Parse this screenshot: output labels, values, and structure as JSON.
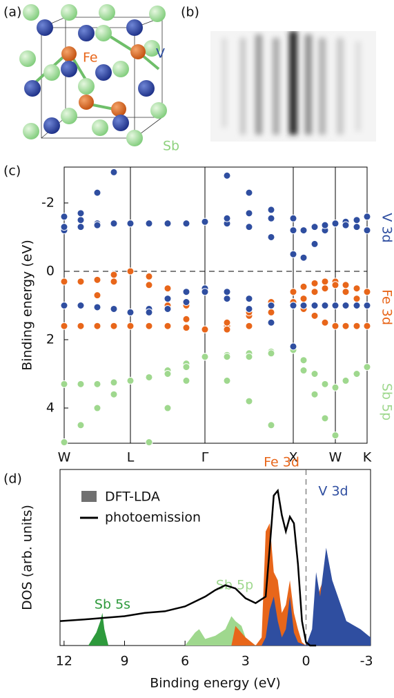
{
  "panel_labels": [
    "(a)",
    "(b)",
    "(c)",
    "(d)"
  ],
  "structure": {
    "labels": [
      "Fe",
      "V",
      "Sb"
    ]
  },
  "chart_data": [
    {
      "type": "bands",
      "ylabel": "Binding energy (eV)",
      "xlim": [
        0,
        4.39
      ],
      "ylim": [
        5.03,
        -3.05
      ],
      "xticks": [
        {
          "value": 0,
          "label": "W"
        },
        {
          "value": 0.96,
          "label": "L"
        },
        {
          "value": 2.04,
          "label": "Γ"
        },
        {
          "value": 3.32,
          "label": "X"
        },
        {
          "value": 3.93,
          "label": "W"
        },
        {
          "value": 4.39,
          "label": "K"
        }
      ],
      "yticks": [
        -2,
        0,
        2,
        4
      ],
      "annotations": [
        {
          "text": "V 3d",
          "color": "#2f4ea0"
        },
        {
          "text": "Fe 3d",
          "color": "#e8661a"
        },
        {
          "text": "Sb 5p",
          "color": "#9fd88e"
        }
      ],
      "x": [
        0,
        0.24,
        0.48,
        0.72,
        0.96,
        1.23,
        1.5,
        1.77,
        2.04,
        2.36,
        2.68,
        3.0,
        3.32,
        3.47,
        3.63,
        3.78,
        3.93,
        4.08,
        4.24,
        4.39
      ],
      "series": [
        {
          "color": "#9fd88e",
          "values": [
            3.3,
            3.3,
            3.3,
            3.25,
            3.2,
            3.1,
            2.9,
            2.7,
            2.5,
            2.45,
            2.4,
            2.35,
            2.3,
            2.6,
            3.0,
            3.3,
            3.4,
            3.2,
            3.0,
            2.8
          ]
        },
        {
          "color": "#9fd88e",
          "values": [
            5.0,
            4.5,
            4.0,
            3.6,
            3.2,
            3.1,
            3.0,
            2.8,
            2.5,
            3.2,
            3.8,
            4.5,
            null,
            null,
            null,
            null,
            null,
            null,
            null,
            null
          ]
        },
        {
          "color": "#9fd88e",
          "values": [
            null,
            null,
            null,
            null,
            null,
            5.0,
            4.0,
            3.2,
            2.5,
            2.5,
            2.5,
            2.4,
            2.3,
            2.9,
            3.6,
            4.3,
            4.8,
            null,
            null,
            null
          ]
        },
        {
          "color": "#e8661a",
          "values": [
            0.3,
            0.3,
            0.25,
            0.1,
            0.0,
            0.15,
            0.5,
            1.0,
            1.7,
            1.6,
            1.3,
            0.9,
            0.6,
            0.45,
            0.35,
            0.3,
            0.3,
            0.4,
            0.5,
            0.6
          ]
        },
        {
          "color": "#e8661a",
          "values": [
            1.0,
            1.0,
            0.7,
            0.3,
            0.0,
            0.4,
            1.0,
            1.4,
            1.7,
            1.7,
            1.6,
            1.2,
            0.9,
            0.8,
            0.6,
            0.5,
            0.4,
            0.6,
            0.8,
            1.0
          ]
        },
        {
          "color": "#e8661a",
          "values": [
            1.6,
            1.6,
            1.6,
            1.6,
            1.6,
            1.6,
            1.6,
            1.65,
            1.7,
            1.5,
            1.2,
            1.0,
            1.0,
            1.1,
            1.3,
            1.5,
            1.6,
            1.6,
            1.6,
            1.6
          ]
        },
        {
          "color": "#2f4ea0",
          "values": [
            -1.6,
            -1.5,
            -1.4,
            -1.4,
            -1.4,
            -1.4,
            -1.4,
            -1.4,
            -1.45,
            -1.4,
            -1.3,
            -1.0,
            -0.5,
            -0.4,
            -0.8,
            -1.2,
            -1.4,
            -1.45,
            -1.5,
            -1.6
          ]
        },
        {
          "color": "#2f4ea0",
          "values": [
            -1.2,
            -1.3,
            -1.35,
            -1.4,
            -1.4,
            -1.4,
            -1.4,
            -1.4,
            -1.45,
            -1.55,
            -1.7,
            -1.55,
            -1.2,
            -1.2,
            -1.3,
            -1.35,
            -1.4,
            -1.35,
            -1.3,
            -1.2
          ]
        },
        {
          "color": "#2f4ea0",
          "values": [
            -1.3,
            -1.7,
            -2.3,
            -2.9,
            null,
            null,
            null,
            null,
            null,
            -2.8,
            -2.3,
            -1.8,
            -1.55,
            null,
            null,
            null,
            null,
            null,
            null,
            null
          ]
        },
        {
          "color": "#2f4ea0",
          "values": [
            null,
            null,
            null,
            null,
            1.2,
            1.1,
            0.8,
            0.6,
            0.5,
            0.8,
            1.1,
            1.5,
            2.2,
            null,
            null,
            null,
            null,
            null,
            null,
            null
          ]
        },
        {
          "color": "#2f4ea0",
          "values": [
            1.0,
            1.0,
            1.05,
            1.1,
            1.2,
            1.2,
            1.1,
            0.9,
            0.6,
            0.6,
            0.8,
            1.0,
            1.0,
            1.0,
            1.0,
            1.0,
            1.0,
            1.0,
            1.0,
            1.0
          ]
        }
      ]
    },
    {
      "type": "dos",
      "xlabel": "Binding energy (eV)",
      "ylabel": "DOS (arb. units)",
      "xlim": [
        12.2,
        -3.2
      ],
      "ylim": [
        0,
        1.08
      ],
      "xticks": [
        12,
        9,
        6,
        3,
        0,
        -3
      ],
      "legend": [
        {
          "name": "DFT-LDA",
          "color": "#707070"
        },
        {
          "name": "photoemission",
          "color": "#000000"
        }
      ],
      "areas": [
        {
          "name": "Sb 5s",
          "color": "#2e9a3c",
          "x": [
            10.8,
            10.4,
            10.2,
            10.1,
            10.0,
            9.8
          ],
          "values": [
            0,
            0.08,
            0.15,
            0.2,
            0.1,
            0
          ]
        },
        {
          "name": "Sb 5p",
          "color": "#9fd88e",
          "x": [
            6,
            5.5,
            5.3,
            5.0,
            4.5,
            4,
            3.7,
            3.5,
            3.2,
            3.0,
            2.5
          ],
          "values": [
            0,
            0.08,
            0.1,
            0.04,
            0.06,
            0.1,
            0.18,
            0.15,
            0.12,
            0.05,
            0
          ]
        },
        {
          "name": "Fe 3d",
          "color": "#e8661a",
          "x": [
            3.7,
            3.5,
            3.0,
            2.5,
            2.2,
            2.0,
            1.8,
            1.6,
            1.4,
            1.2,
            1.0,
            0.8,
            0.6,
            0.4,
            0.2,
            0,
            -0.3,
            -0.5,
            -0.7,
            -1,
            -1.3,
            -2,
            -2.7,
            -3.2
          ],
          "values": [
            0,
            0.12,
            0.05,
            0,
            0.05,
            0.7,
            0.75,
            0.45,
            0.4,
            0.2,
            0.25,
            0.4,
            0.2,
            0.1,
            0.02,
            0,
            0.05,
            0.25,
            0.35,
            0.45,
            0.3,
            0.12,
            0.08,
            0.02
          ]
        },
        {
          "name": "V 3d",
          "color": "#2f4ea0",
          "x": [
            2.2,
            2.0,
            1.8,
            1.6,
            1.4,
            1.2,
            1.0,
            0.8,
            0.6,
            0.4,
            0.2,
            0,
            -0.3,
            -0.5,
            -0.7,
            -1,
            -1.3,
            -2,
            -2.7,
            -3.2
          ],
          "values": [
            0,
            0.05,
            0.22,
            0.3,
            0.15,
            0.05,
            0.1,
            0.3,
            0.08,
            0.02,
            0.01,
            0,
            0.1,
            0.45,
            0.3,
            0.6,
            0.4,
            0.15,
            0.1,
            0.05
          ]
        }
      ],
      "line": {
        "x": [
          12.2,
          11,
          10,
          9,
          8,
          7,
          6,
          5,
          4.5,
          4,
          3.5,
          3,
          2.5,
          2,
          1.8,
          1.6,
          1.4,
          1.2,
          1.0,
          0.8,
          0.6,
          0.4,
          0.2,
          0,
          -0.2,
          -0.5
        ],
        "values": [
          0.15,
          0.16,
          0.17,
          0.18,
          0.2,
          0.21,
          0.24,
          0.3,
          0.34,
          0.37,
          0.35,
          0.29,
          0.26,
          0.3,
          0.6,
          0.92,
          0.95,
          0.8,
          0.7,
          0.79,
          0.75,
          0.5,
          0.15,
          0.02,
          0,
          0
        ]
      }
    }
  ]
}
